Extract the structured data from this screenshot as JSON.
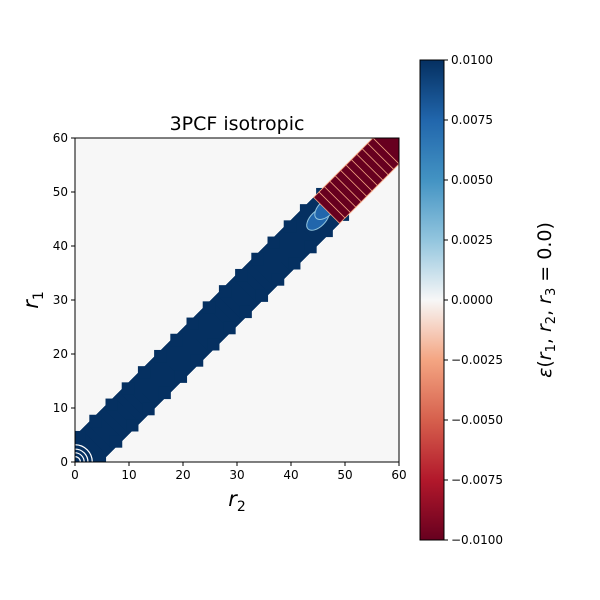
{
  "chart_data": {
    "type": "heatmap",
    "title": "3PCF isotropic",
    "xlabel_main": "r",
    "xlabel_sub": "2",
    "ylabel_main": "r",
    "ylabel_sub": "1",
    "xlim": [
      0,
      60
    ],
    "ylim": [
      0,
      60
    ],
    "xticks": [
      0,
      10,
      20,
      30,
      40,
      50,
      60
    ],
    "yticks": [
      0,
      10,
      20,
      30,
      40,
      50,
      60
    ],
    "grid": false,
    "background_value": 0.0,
    "colormap": "RdBu",
    "colorbar": {
      "vmin": -0.01,
      "vmax": 0.01,
      "tick_labels": [
        "0.0100",
        "0.0075",
        "0.0050",
        "0.0025",
        "0.0000",
        "−0.0025",
        "−0.0050",
        "−0.0075",
        "−0.0100"
      ],
      "tick_values": [
        0.01,
        0.0075,
        0.005,
        0.0025,
        0.0,
        -0.0025,
        -0.005,
        -0.0075,
        -0.01
      ],
      "label_epsilon": "ε",
      "label_r1": "r",
      "label_r1_sub": "1",
      "label_r2": "r",
      "label_r2_sub": "2",
      "label_r3": "r",
      "label_r3_sub": "3",
      "label_open": "(",
      "label_comma": ", ",
      "label_eq": " = 0.0)"
    },
    "regions": [
      {
        "from_r": 0,
        "to_r": 47,
        "value": 0.01,
        "note": "diagonal band r1 ≈ r2"
      },
      {
        "from_r": 47,
        "to_r": 60,
        "value": -0.01,
        "note": "diagonal band r1 ≈ r2"
      }
    ],
    "colors": {
      "max": "#053061",
      "mid_high": "#2166ac",
      "light_blue": "#92c5de",
      "neutral": "#f7f7f7",
      "light_red": "#f4a582",
      "mid_low": "#b2182b",
      "min": "#67001f"
    }
  }
}
